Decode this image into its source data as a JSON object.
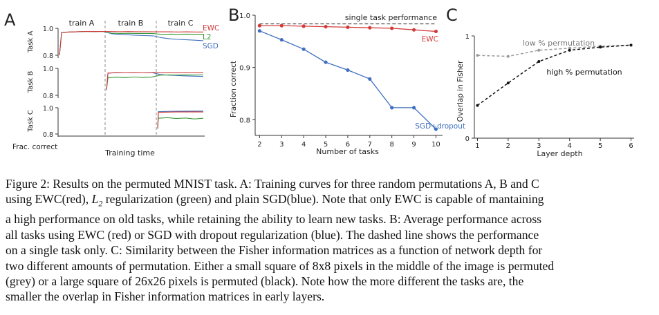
{
  "chart_data": [
    {
      "panel": "A",
      "type": "line",
      "phases": [
        "train A",
        "train B",
        "train C"
      ],
      "xlabel": "Training time",
      "ylabel_prefix": "Frac. correct",
      "colors": {
        "EWC": "#d23b3b",
        "L2": "#3a9a3a",
        "SGD": "#3f6fbf"
      },
      "legend": [
        "EWC",
        "L2",
        "SGD"
      ],
      "rows": [
        {
          "name": "Task A",
          "ticks": [
            "1.0",
            "0.8"
          ],
          "ylim": [
            0.8,
            1.0
          ],
          "start_phase": 0,
          "series": [
            {
              "name": "EWC",
              "values": [
                0.8,
                0.97,
                0.973,
                0.975,
                0.977,
                0.976,
                0.977,
                0.976,
                0.975,
                0.976,
                0.975,
                0.975,
                0.974,
                0.974,
                0.974,
                0.973,
                0.974,
                0.973,
                0.973
              ]
            },
            {
              "name": "L2",
              "values": [
                0.8,
                0.97,
                0.973,
                0.975,
                0.977,
                0.976,
                0.977,
                0.964,
                0.962,
                0.963,
                0.962,
                0.962,
                0.961,
                0.955,
                0.957,
                0.956,
                0.957,
                0.956,
                0.955
              ]
            },
            {
              "name": "SGD",
              "values": [
                0.8,
                0.97,
                0.973,
                0.975,
                0.977,
                0.976,
                0.977,
                0.96,
                0.955,
                0.952,
                0.948,
                0.946,
                0.944,
                0.93,
                0.922,
                0.918,
                0.915,
                0.912,
                0.908
              ]
            }
          ]
        },
        {
          "name": "Task B",
          "ticks": [
            "1.0",
            "0.8"
          ],
          "ylim": [
            0.8,
            1.0
          ],
          "start_phase": 1,
          "series": [
            {
              "name": "EWC",
              "values": [
                0.84,
                0.965,
                0.968,
                0.969,
                0.97,
                0.969,
                0.97,
                0.968,
                0.969,
                0.968,
                0.969,
                0.968,
                0.968
              ]
            },
            {
              "name": "L2",
              "values": [
                0.84,
                0.93,
                0.935,
                0.932,
                0.936,
                0.933,
                0.935,
                0.95,
                0.952,
                0.951,
                0.952,
                0.951,
                0.952
              ]
            },
            {
              "name": "SGD",
              "values": [
                0.84,
                0.965,
                0.968,
                0.969,
                0.97,
                0.969,
                0.97,
                0.955,
                0.95,
                0.947,
                0.944,
                0.942,
                0.94
              ]
            }
          ]
        },
        {
          "name": "Task C",
          "ticks": [
            "1.0",
            "0.8"
          ],
          "ylim": [
            0.8,
            1.0
          ],
          "start_phase": 2,
          "series": [
            {
              "name": "EWC",
              "values": [
                0.84,
                0.965,
                0.967,
                0.968,
                0.968,
                0.969,
                0.968
              ]
            },
            {
              "name": "L2",
              "values": [
                0.84,
                0.92,
                0.925,
                0.918,
                0.922,
                0.915,
                0.92
              ]
            },
            {
              "name": "SGD",
              "values": [
                0.84,
                0.97,
                0.972,
                0.973,
                0.974,
                0.974,
                0.975
              ]
            }
          ]
        }
      ]
    },
    {
      "panel": "B",
      "type": "line",
      "xlabel": "Number of tasks",
      "ylabel": "Fraction correct",
      "x": [
        2,
        3,
        4,
        5,
        6,
        7,
        8,
        9,
        10
      ],
      "xlim": [
        1.8,
        10.3
      ],
      "ylim": [
        0.77,
        1.0
      ],
      "yticks": [
        0.8,
        0.9,
        1.0
      ],
      "ytick_labels": [
        "0.8",
        "0.9",
        "1.0"
      ],
      "reference": {
        "name": "single task performance",
        "value": 0.982
      },
      "series": [
        {
          "name": "EWC",
          "color": "#d23b3b",
          "values": [
            0.98,
            0.98,
            0.979,
            0.978,
            0.977,
            0.976,
            0.975,
            0.972,
            0.969
          ]
        },
        {
          "name": "SGD+dropout",
          "color": "#3f6fbf",
          "values": [
            0.97,
            0.953,
            0.935,
            0.91,
            0.895,
            0.878,
            0.823,
            0.823,
            0.782
          ]
        }
      ]
    },
    {
      "panel": "C",
      "type": "line",
      "xlabel": "Layer depth",
      "ylabel": "Overlap in Fisher",
      "x": [
        1,
        2,
        3,
        4,
        5,
        6
      ],
      "xlim": [
        0.9,
        6.1
      ],
      "ylim": [
        0,
        1
      ],
      "yticks": [
        0,
        1
      ],
      "ytick_labels": [
        "0",
        "1"
      ],
      "series": [
        {
          "name": "low % permutation",
          "color": "#999999",
          "values": [
            0.81,
            0.8,
            0.86,
            0.88,
            0.9,
            0.91
          ]
        },
        {
          "name": "high % permutation",
          "color": "#111111",
          "values": [
            0.32,
            0.54,
            0.75,
            0.86,
            0.89,
            0.91
          ]
        }
      ]
    }
  ],
  "caption": {
    "lines": [
      [
        "Figure 2:  Results on the permuted MNIST task. A: Training curves for three random permutations A, B and C"
      ],
      [
        "using EWC(red), ",
        {
          "math": "L",
          "sub": "2"
        },
        " regularization (green) and plain SGD(blue). Note that only EWC is capable of mantaining"
      ],
      [
        "a high performance on old tasks, while retaining the ability to learn new tasks. B: Average performance across"
      ],
      [
        "all tasks using EWC (red) or SGD with dropout regularization (blue).  The dashed line shows the performance"
      ],
      [
        "on a single task only. C: Similarity between the Fisher information matrices as a function of network depth for"
      ],
      [
        "two different amounts of permutation. Either a small square of 8x8 pixels in the middle of the image is permuted"
      ],
      [
        "(grey) or a large square of 26x26 pixels is permuted (black). Note how the more different the tasks are, the"
      ],
      [
        "smaller the overlap in Fisher information matrices in early layers."
      ]
    ]
  }
}
